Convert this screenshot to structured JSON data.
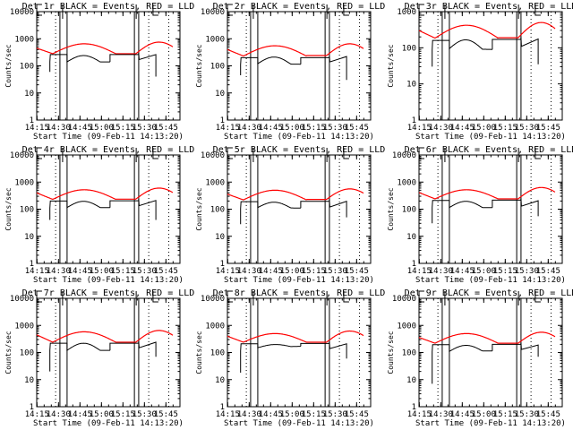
{
  "chart_data": [
    {
      "type": "line",
      "title": "Det 1r BLACK = Events, RED = LLD",
      "ylabel": "Counts/sec",
      "xlabel": "Start Time (09-Feb-11 14:13:20)",
      "yscale": "log",
      "ylim": [
        1,
        10000
      ],
      "ytick_labels": [
        "1",
        "10",
        "100",
        "1000",
        "10000"
      ],
      "xtick_labels": [
        "14:15",
        "14:30",
        "14:45",
        "15:00",
        "15:15",
        "15:30",
        "15:45"
      ],
      "series": [
        {
          "name": "Events",
          "color": "#000000"
        },
        {
          "name": "LLD",
          "color": "#ff0000"
        }
      ],
      "events_levels": {
        "a": 260,
        "b_start": 140,
        "b_peak": 240,
        "b_end": 140,
        "c": 260,
        "d_start": 170,
        "d_end": 260,
        "drop_a": 60,
        "drop_d": 40
      },
      "lld_levels": {
        "start": 450,
        "base": 280,
        "peak1": 650,
        "mid": 280,
        "peak2": 750,
        "end": 550
      }
    },
    {
      "type": "line",
      "title": "Det 2r BLACK = Events, RED = LLD",
      "ylabel": "Counts/sec",
      "xlabel": "Start Time (09-Feb-11 14:13:20)",
      "yscale": "log",
      "ylim": [
        1,
        10000
      ],
      "ytick_labels": [
        "1",
        "10",
        "100",
        "1000",
        "10000"
      ],
      "xtick_labels": [
        "14:15",
        "14:30",
        "14:45",
        "15:00",
        "15:15",
        "15:30",
        "15:45"
      ],
      "series": [
        {
          "name": "Events",
          "color": "#000000"
        },
        {
          "name": "LLD",
          "color": "#ff0000"
        }
      ],
      "events_levels": {
        "a": 200,
        "b_start": 120,
        "b_peak": 210,
        "b_end": 115,
        "c": 200,
        "d_start": 140,
        "d_end": 220,
        "drop_a": 45,
        "drop_d": 30
      },
      "lld_levels": {
        "start": 400,
        "base": 230,
        "peak1": 550,
        "mid": 240,
        "peak2": 650,
        "end": 480
      }
    },
    {
      "type": "line",
      "title": "Det 3r BLACK = Events, RED = LLD",
      "ylabel": "Counts/sec",
      "xlabel": "Start Time (09-Feb-11 14:13:20)",
      "yscale": "log",
      "ylim": [
        1,
        1000
      ],
      "ytick_labels": [
        "1",
        "10",
        "100",
        "1000"
      ],
      "xtick_labels": [
        "14:15",
        "14:30",
        "14:45",
        "15:00",
        "15:15",
        "15:30",
        "15:45"
      ],
      "series": [
        {
          "name": "Events",
          "color": "#000000"
        },
        {
          "name": "LLD",
          "color": "#ff0000"
        }
      ],
      "events_levels": {
        "a": 160,
        "b_start": 95,
        "b_peak": 165,
        "b_end": 90,
        "c": 170,
        "d_start": 110,
        "d_end": 175,
        "drop_a": 30,
        "drop_d": 35
      },
      "lld_levels": {
        "start": 300,
        "base": 185,
        "peak1": 420,
        "mid": 190,
        "peak2": 500,
        "end": 370
      }
    },
    {
      "type": "line",
      "title": "Det 4r BLACK = Events, RED = LLD",
      "ylabel": "Counts/sec",
      "xlabel": "Start Time (09-Feb-11 14:13:20)",
      "yscale": "log",
      "ylim": [
        1,
        10000
      ],
      "ytick_labels": [
        "1",
        "10",
        "100",
        "1000",
        "10000"
      ],
      "xtick_labels": [
        "14:15",
        "14:30",
        "14:45",
        "15:00",
        "15:15",
        "15:30",
        "15:45"
      ],
      "series": [
        {
          "name": "Events",
          "color": "#000000"
        },
        {
          "name": "LLD",
          "color": "#ff0000"
        }
      ],
      "events_levels": {
        "a": 200,
        "b_start": 115,
        "b_peak": 195,
        "b_end": 115,
        "c": 205,
        "d_start": 135,
        "d_end": 210,
        "drop_a": 40,
        "drop_d": 40
      },
      "lld_levels": {
        "start": 400,
        "base": 230,
        "peak1": 520,
        "mid": 235,
        "peak2": 600,
        "end": 470
      }
    },
    {
      "type": "line",
      "title": "Det 5r BLACK = Events, RED = LLD",
      "ylabel": "Counts/sec",
      "xlabel": "Start Time (09-Feb-11 14:13:20)",
      "yscale": "log",
      "ylim": [
        1,
        10000
      ],
      "ytick_labels": [
        "1",
        "10",
        "100",
        "1000",
        "10000"
      ],
      "xtick_labels": [
        "14:15",
        "14:30",
        "14:45",
        "15:00",
        "15:15",
        "15:30",
        "15:45"
      ],
      "series": [
        {
          "name": "Events",
          "color": "#000000"
        },
        {
          "name": "LLD",
          "color": "#ff0000"
        }
      ],
      "events_levels": {
        "a": 190,
        "b_start": 115,
        "b_peak": 180,
        "b_end": 110,
        "c": 195,
        "d_start": 120,
        "d_end": 195,
        "drop_a": 28,
        "drop_d": 50
      },
      "lld_levels": {
        "start": 360,
        "base": 220,
        "peak1": 500,
        "mid": 230,
        "peak2": 560,
        "end": 420
      }
    },
    {
      "type": "line",
      "title": "Det 6r BLACK = Events, RED = LLD",
      "ylabel": "Counts/sec",
      "xlabel": "Start Time (09-Feb-11 14:13:20)",
      "yscale": "log",
      "ylim": [
        1,
        10000
      ],
      "ytick_labels": [
        "1",
        "10",
        "100",
        "1000",
        "10000"
      ],
      "xtick_labels": [
        "14:15",
        "14:30",
        "14:45",
        "15:00",
        "15:15",
        "15:30",
        "15:45"
      ],
      "series": [
        {
          "name": "Events",
          "color": "#000000"
        },
        {
          "name": "LLD",
          "color": "#ff0000"
        }
      ],
      "events_levels": {
        "a": 210,
        "b_start": 115,
        "b_peak": 195,
        "b_end": 115,
        "c": 215,
        "d_start": 130,
        "d_end": 205,
        "drop_a": 30,
        "drop_d": 55
      },
      "lld_levels": {
        "start": 410,
        "base": 240,
        "peak1": 520,
        "mid": 240,
        "peak2": 630,
        "end": 490
      }
    },
    {
      "type": "line",
      "title": "Det 7r BLACK = Events, RED = LLD",
      "ylabel": "Counts/sec",
      "xlabel": "Start Time (09-Feb-11 14:13:20)",
      "yscale": "log",
      "ylim": [
        1,
        10000
      ],
      "ytick_labels": [
        "1",
        "10",
        "100",
        "1000",
        "10000"
      ],
      "xtick_labels": [
        "14:15",
        "14:30",
        "14:45",
        "15:00",
        "15:15",
        "15:30",
        "15:45"
      ],
      "series": [
        {
          "name": "Events",
          "color": "#000000"
        },
        {
          "name": "LLD",
          "color": "#ff0000"
        }
      ],
      "events_levels": {
        "a": 220,
        "b_start": 120,
        "b_peak": 220,
        "b_end": 120,
        "c": 220,
        "d_start": 150,
        "d_end": 240,
        "drop_a": 20,
        "drop_d": 70
      },
      "lld_levels": {
        "start": 450,
        "base": 240,
        "peak1": 580,
        "mid": 240,
        "peak2": 650,
        "end": 520
      }
    },
    {
      "type": "line",
      "title": "Det 8r BLACK = Events, RED = LLD",
      "ylabel": "Counts/sec",
      "xlabel": "Start Time (09-Feb-11 14:13:20)",
      "yscale": "log",
      "ylim": [
        1,
        10000
      ],
      "ytick_labels": [
        "1",
        "10",
        "100",
        "1000",
        "10000"
      ],
      "xtick_labels": [
        "14:15",
        "14:30",
        "14:45",
        "15:00",
        "15:15",
        "15:30",
        "15:45"
      ],
      "series": [
        {
          "name": "Events",
          "color": "#000000"
        },
        {
          "name": "LLD",
          "color": "#ff0000"
        }
      ],
      "events_levels": {
        "a": 210,
        "b_start": 150,
        "b_peak": 200,
        "b_end": 170,
        "c": 215,
        "d_start": 140,
        "d_end": 210,
        "drop_a": 18,
        "drop_d": 60,
        "gap_drop": 30,
        "gap_drop2": 75
      },
      "lld_levels": {
        "start": 400,
        "base": 240,
        "peak1": 500,
        "mid": 240,
        "peak2": 620,
        "end": 470
      }
    },
    {
      "type": "line",
      "title": "Det 9r BLACK = Events, RED = LLD",
      "ylabel": "Counts/sec",
      "xlabel": "Start Time (09-Feb-11 14:13:20)",
      "yscale": "log",
      "ylim": [
        1,
        10000
      ],
      "ytick_labels": [
        "1",
        "10",
        "100",
        "1000",
        "10000"
      ],
      "xtick_labels": [
        "14:15",
        "14:30",
        "14:45",
        "15:00",
        "15:15",
        "15:30",
        "15:45"
      ],
      "series": [
        {
          "name": "Events",
          "color": "#000000"
        },
        {
          "name": "LLD",
          "color": "#ff0000"
        }
      ],
      "events_levels": {
        "a": 195,
        "b_start": 110,
        "b_peak": 185,
        "b_end": 115,
        "c": 200,
        "d_start": 130,
        "d_end": 190,
        "drop_a": 7,
        "drop_d": 70
      },
      "lld_levels": {
        "start": 360,
        "base": 220,
        "peak1": 500,
        "mid": 220,
        "peak2": 560,
        "end": 420
      }
    }
  ],
  "annotations": {
    "time_markers": [
      "14:28",
      "14:31",
      "14:36",
      "15:23",
      "15:26",
      "15:33",
      "15:47"
    ],
    "segment_labels": [
      "E",
      "F",
      "F",
      "E"
    ]
  }
}
